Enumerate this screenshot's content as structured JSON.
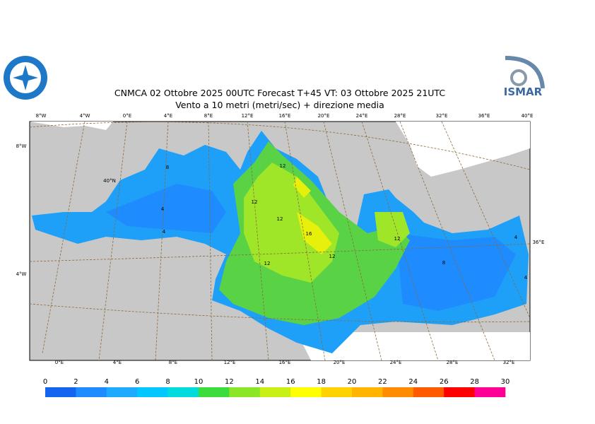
{
  "header": {
    "title": "CNMCA 02  Ottobre  2025 00UTC Forecast T+45 VT: 03  Ottobre  2025 21UTC",
    "subtitle": "Vento a 10 metri (metri/sec) + direzione media",
    "logo_right": "ISMAR"
  },
  "map": {
    "top_labels": [
      "8°W",
      "4°W",
      "0°E",
      "4°E",
      "8°E",
      "12°E",
      "16°E",
      "20°E",
      "24°E",
      "28°E",
      "32°E",
      "36°E",
      "40°E"
    ],
    "bottom_labels": [
      "0°E",
      "4°E",
      "8°E",
      "12°E",
      "16°E",
      "20°E",
      "24°E",
      "28°E",
      "32°E"
    ],
    "left_labels": [
      "8°W",
      "40°N",
      "4°W"
    ],
    "right_labels": [
      "36°E"
    ],
    "contour_labels": [
      "8",
      "4",
      "4",
      "12",
      "12",
      "12",
      "16",
      "12",
      "12",
      "12",
      "8",
      "4",
      "4"
    ]
  },
  "colorbar": {
    "ticks": [
      0,
      2,
      4,
      6,
      8,
      10,
      12,
      14,
      16,
      18,
      20,
      22,
      24,
      26,
      28,
      30
    ],
    "colors": [
      "#1464f0",
      "#1e8cff",
      "#1eaaff",
      "#00c8ff",
      "#00dcdc",
      "#3cdc3c",
      "#8ce628",
      "#c8f014",
      "#ffff00",
      "#ffd200",
      "#ffb400",
      "#ff8c00",
      "#ff5a00",
      "#ff0000",
      "#ff0096"
    ]
  }
}
